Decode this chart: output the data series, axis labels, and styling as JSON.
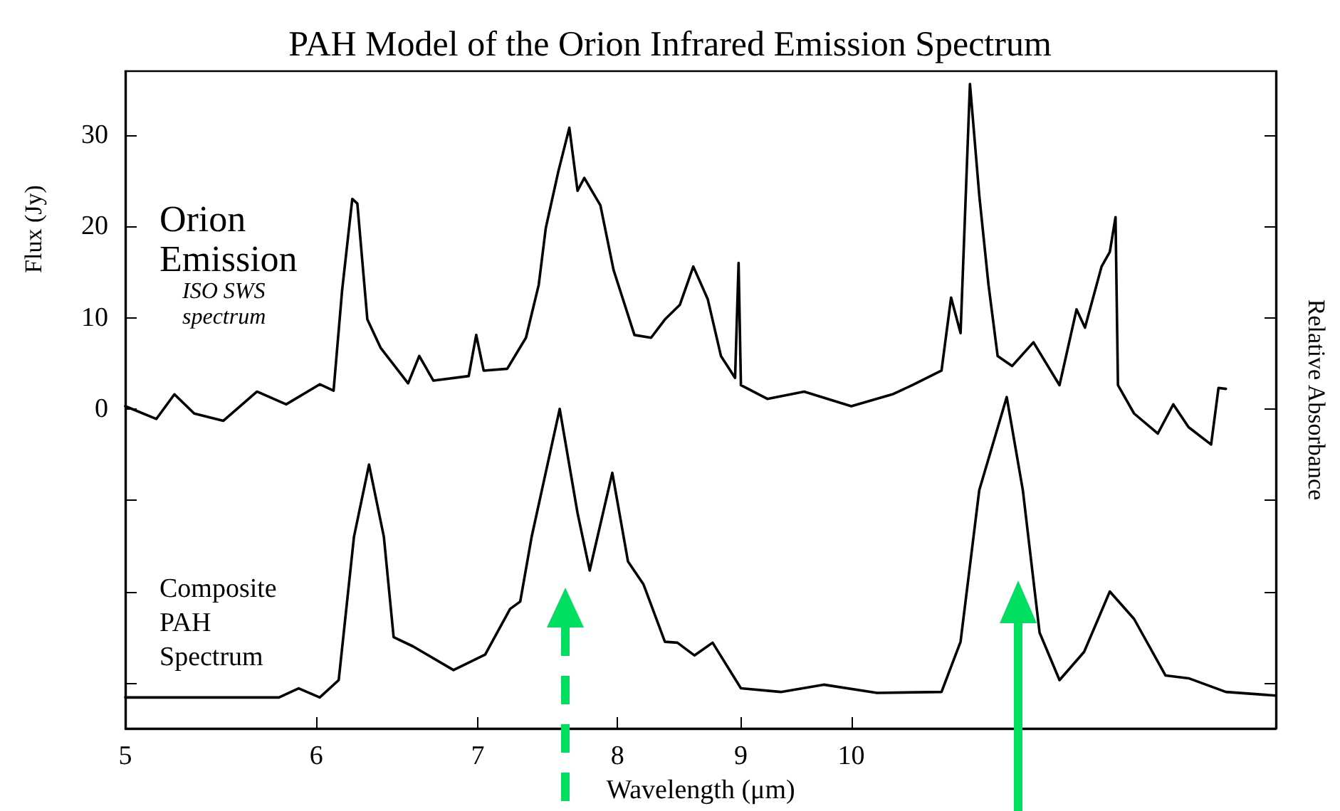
{
  "chart_data": {
    "type": "line",
    "title": "PAH Model of the Orion Infrared Emission Spectrum",
    "xlabel": "Wavelength (μm)",
    "ylabel": "Flux (Jy)",
    "y2label": "Relative Absorbance",
    "log": "x",
    "xlim": [
      5,
      15
    ],
    "xticks": [
      5,
      6,
      7,
      8,
      9,
      10
    ],
    "ylim": [
      -35,
      37
    ],
    "yticks": [
      {
        "value": -30,
        "label": null
      },
      {
        "value": -20,
        "label": null
      },
      {
        "value": -10,
        "label": null
      },
      0,
      10,
      20,
      30
    ],
    "grid": false,
    "marker": "none",
    "line_style": "solid",
    "annotations": [
      "Orion Emission",
      "ISO SWS spectrum",
      "Composite PAH Spectrum"
    ],
    "series": [
      {
        "color": "#000000",
        "x": [
          5.0,
          5.15,
          5.24,
          5.34,
          5.49,
          5.67,
          5.83,
          6.02,
          6.1,
          6.15,
          6.21,
          6.24,
          6.3,
          6.38,
          6.55,
          6.62,
          6.71,
          6.94,
          6.99,
          7.04,
          7.2,
          7.33,
          7.42,
          7.47,
          7.56,
          7.64,
          7.7,
          7.75,
          7.87,
          7.97,
          8.13,
          8.26,
          8.37,
          8.49,
          8.6,
          8.72,
          8.83,
          8.95,
          8.98,
          9.0,
          9.23,
          9.56,
          10.0,
          10.4,
          10.6,
          10.9,
          11.0,
          11.1,
          11.2,
          11.3,
          11.4,
          11.5,
          11.66,
          11.9,
          12.2,
          12.4,
          12.5,
          12.7,
          12.8,
          12.87,
          12.9,
          13.1,
          13.4,
          13.6,
          13.8,
          14.1,
          14.2,
          14.3
        ],
        "values": [
          0.3,
          -1.1,
          1.6,
          -0.5,
          -1.3,
          1.9,
          0.5,
          2.7,
          2,
          13,
          23,
          22.5,
          9.8,
          6.7,
          2.8,
          5.8,
          3.1,
          3.6,
          8.1,
          4.2,
          4.4,
          7.8,
          13.6,
          19.8,
          26,
          30.8,
          23.9,
          25.3,
          22.3,
          15.2,
          8.1,
          7.8,
          9.8,
          11.4,
          15.6,
          12,
          5.8,
          3.4,
          16,
          2.6,
          1.1,
          1.9,
          0.3,
          1.6,
          2.6,
          4.2,
          12.2,
          8.3,
          35.6,
          23.4,
          13.6,
          5.8,
          4.7,
          7.3,
          2.6,
          10.9,
          8.9,
          15.6,
          17.2,
          21,
          2.6,
          -0.5,
          -2.7,
          0.5,
          -2,
          -3.9,
          2.3,
          2.2
        ]
      },
      {
        "color": "#000000",
        "x": [
          5.0,
          5.79,
          5.9,
          6.02,
          6.13,
          6.22,
          6.31,
          6.4,
          6.46,
          6.58,
          6.84,
          7.05,
          7.22,
          7.29,
          7.37,
          7.57,
          7.7,
          7.79,
          7.96,
          8.08,
          8.2,
          8.37,
          8.47,
          8.61,
          8.76,
          9.0,
          9.35,
          9.74,
          10.25,
          10.9,
          11.1,
          11.3,
          11.6,
          11.78,
          11.97,
          12.2,
          12.49,
          12.8,
          13.1,
          13.5,
          13.8,
          14.3,
          15.0
        ],
        "values": [
          -31.6,
          -31.6,
          -30.6,
          -31.6,
          -29.7,
          -14,
          -6.1,
          -14,
          -25,
          -26,
          -28.6,
          -26.9,
          -21.9,
          -21.1,
          -14,
          0,
          -11.4,
          -17.7,
          -7,
          -16.7,
          -19.2,
          -25.5,
          -25.6,
          -27,
          -25.6,
          -30.6,
          -31,
          -30.2,
          -31.1,
          -31,
          -25.5,
          -8.9,
          1.3,
          -8.9,
          -24.5,
          -29.7,
          -26.6,
          -20,
          -23,
          -29.2,
          -29.5,
          -31,
          -31.4
        ]
      }
    ]
  }
}
